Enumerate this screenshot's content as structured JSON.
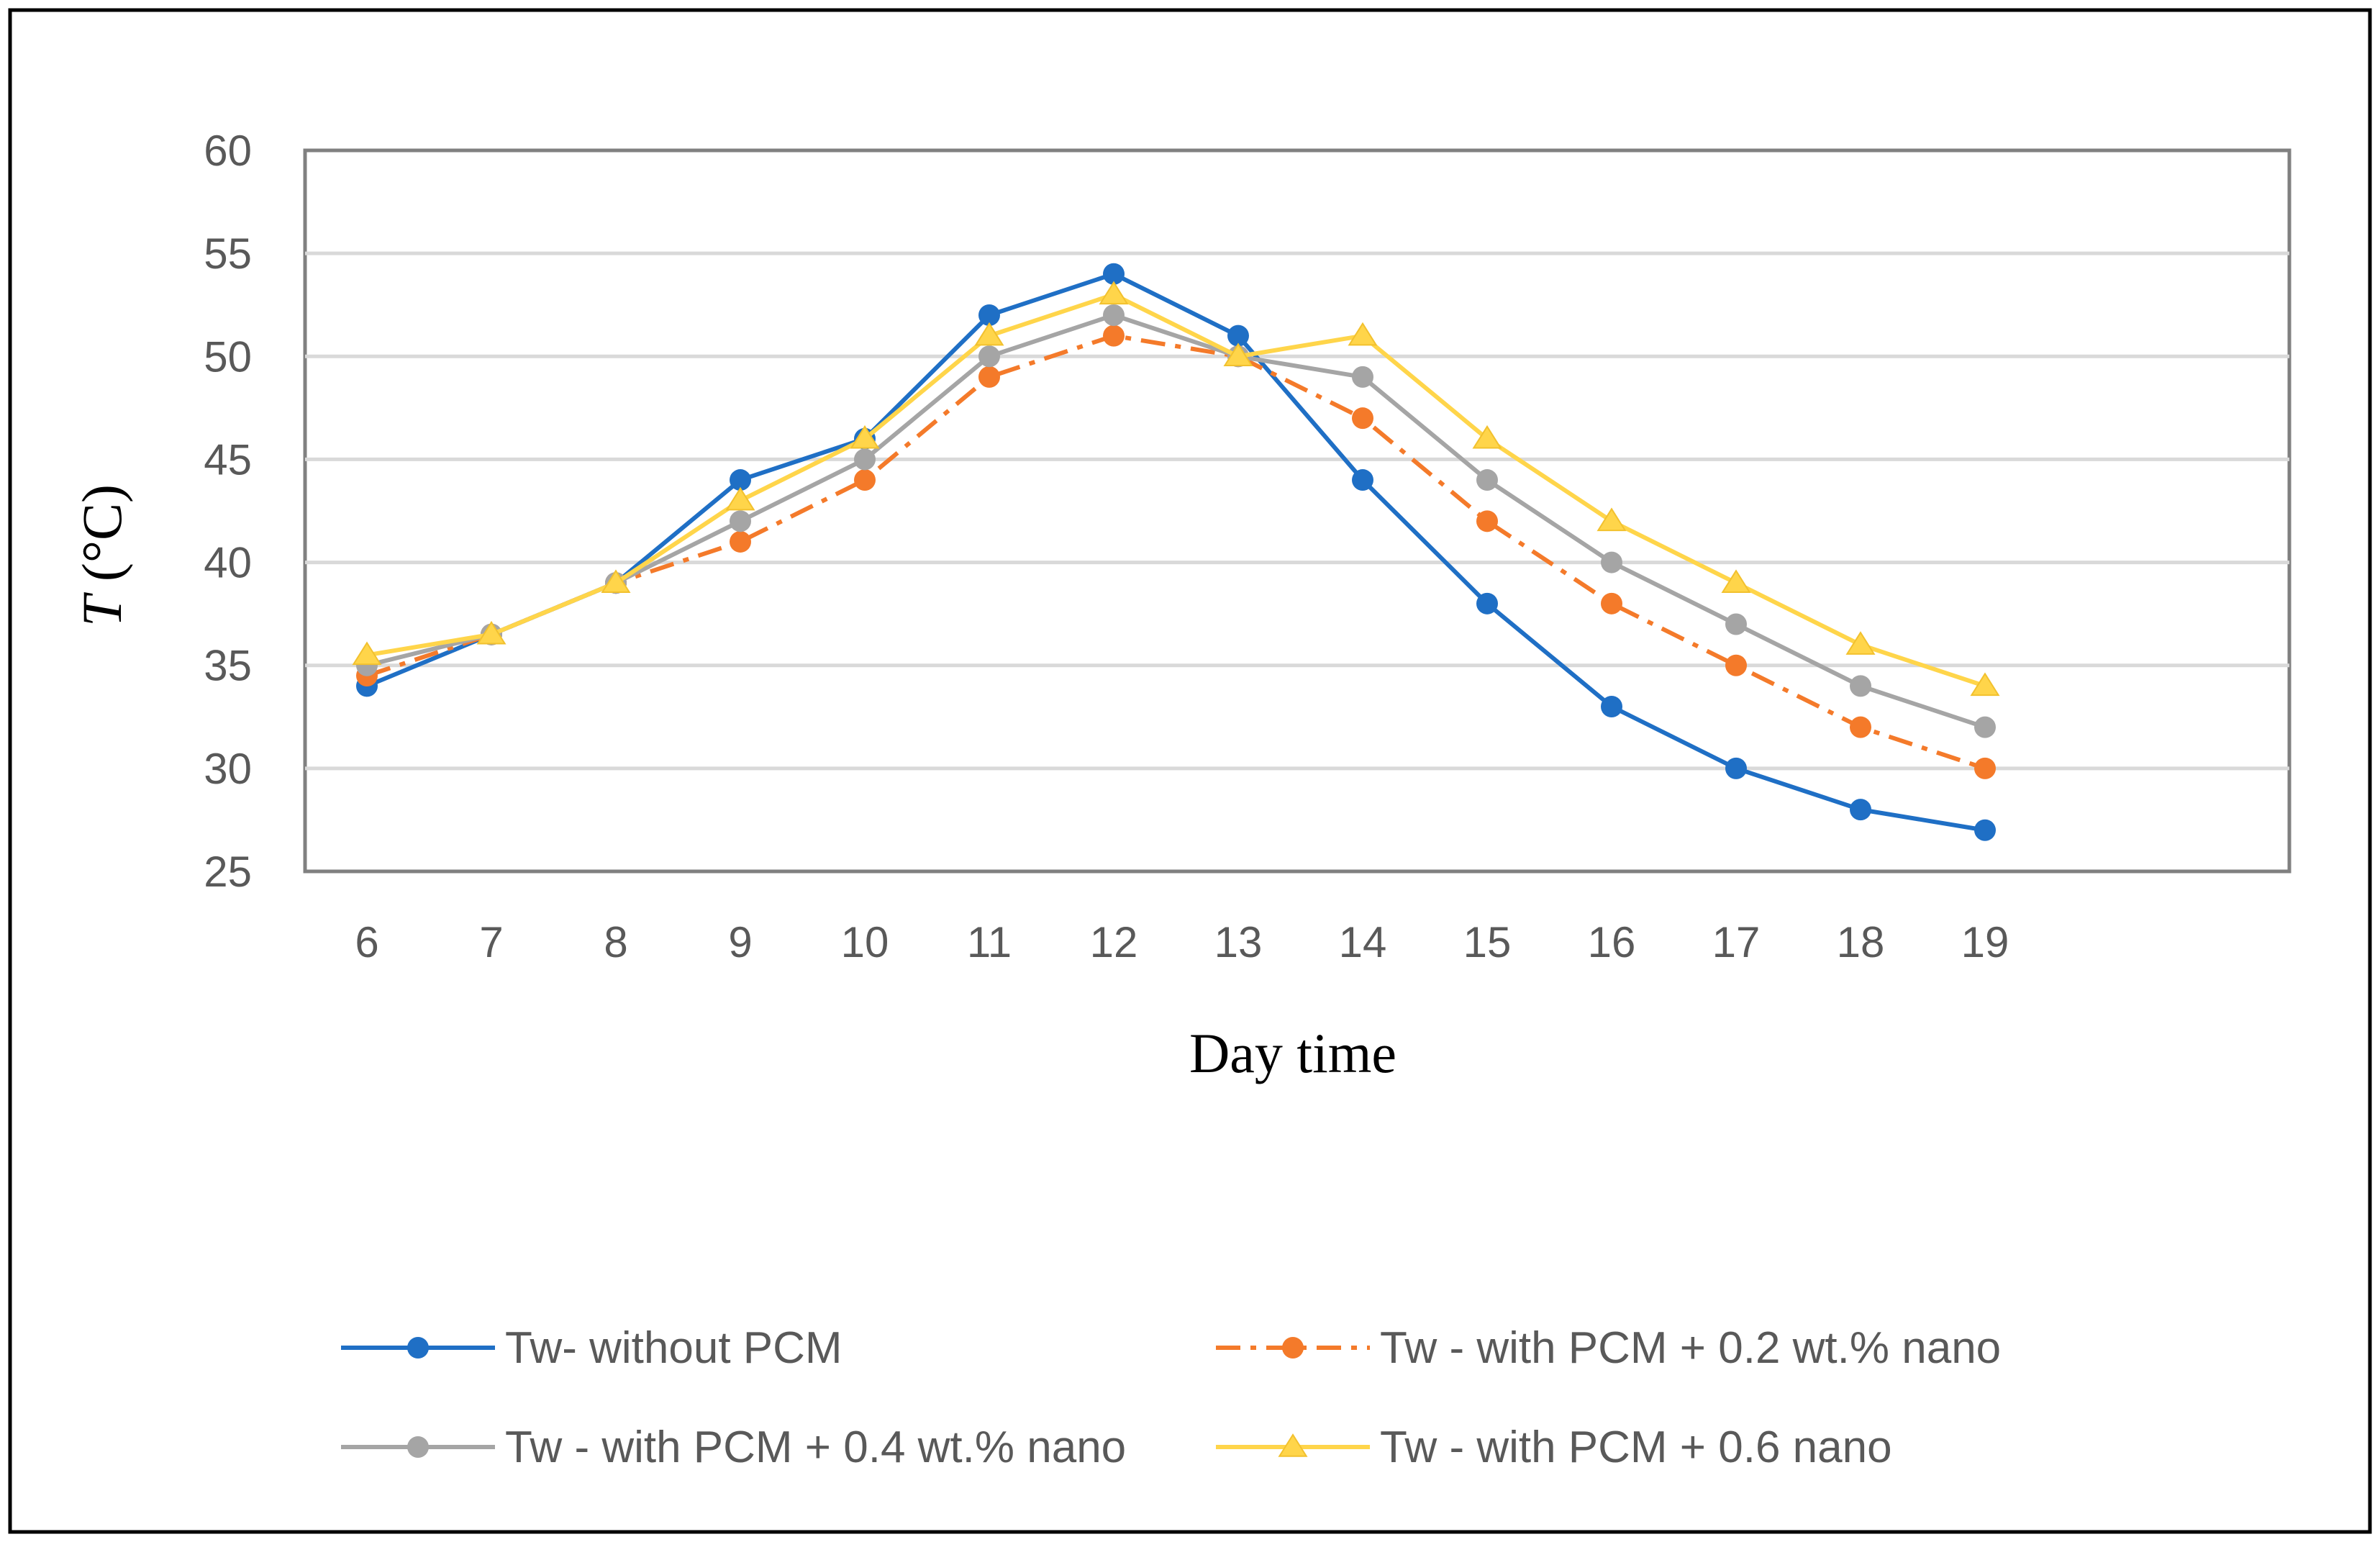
{
  "chart_data": {
    "type": "line",
    "title": "",
    "xlabel": "Day time",
    "ylabel_italic": "T",
    "ylabel_unit": "(°C)",
    "x": [
      6,
      7,
      8,
      9,
      10,
      11,
      12,
      13,
      14,
      15,
      16,
      17,
      18,
      19
    ],
    "x_tick_labels": [
      "6",
      "7",
      "8",
      "9",
      "10",
      "11",
      "12",
      "13",
      "14",
      "15",
      "16",
      "17",
      "18",
      "19"
    ],
    "ylim": [
      25,
      60
    ],
    "y_ticks": [
      25,
      30,
      35,
      40,
      45,
      50,
      55,
      60
    ],
    "grid": true,
    "legend_position": "bottom",
    "series": [
      {
        "name": "Tw- without PCM",
        "color": "#1f6fc5",
        "marker": "circle",
        "dash": "solid",
        "values": [
          34,
          36.5,
          39,
          44,
          46,
          52,
          54,
          51,
          44,
          38,
          33,
          30,
          28,
          27
        ]
      },
      {
        "name": "Tw - with PCM + 0.2 wt.% nano",
        "color": "#f47a2a",
        "marker": "circle",
        "dash": "dashdot",
        "values": [
          34.5,
          36.5,
          39,
          41,
          44,
          49,
          51,
          50,
          47,
          42,
          38,
          35,
          32,
          30
        ]
      },
      {
        "name": "Tw - with PCM + 0.4 wt.% nano",
        "color": "#a5a5a5",
        "marker": "circle",
        "dash": "solid",
        "values": [
          35,
          36.5,
          39,
          42,
          45,
          50,
          52,
          50,
          49,
          44,
          40,
          37,
          34,
          32
        ]
      },
      {
        "name": "Tw - with PCM + 0.6 nano",
        "color": "#ffd54a",
        "marker": "triangle",
        "dash": "solid",
        "values": [
          35.5,
          36.5,
          39,
          43,
          46,
          51,
          53,
          50,
          51,
          46,
          42,
          39,
          36,
          34
        ]
      }
    ]
  }
}
